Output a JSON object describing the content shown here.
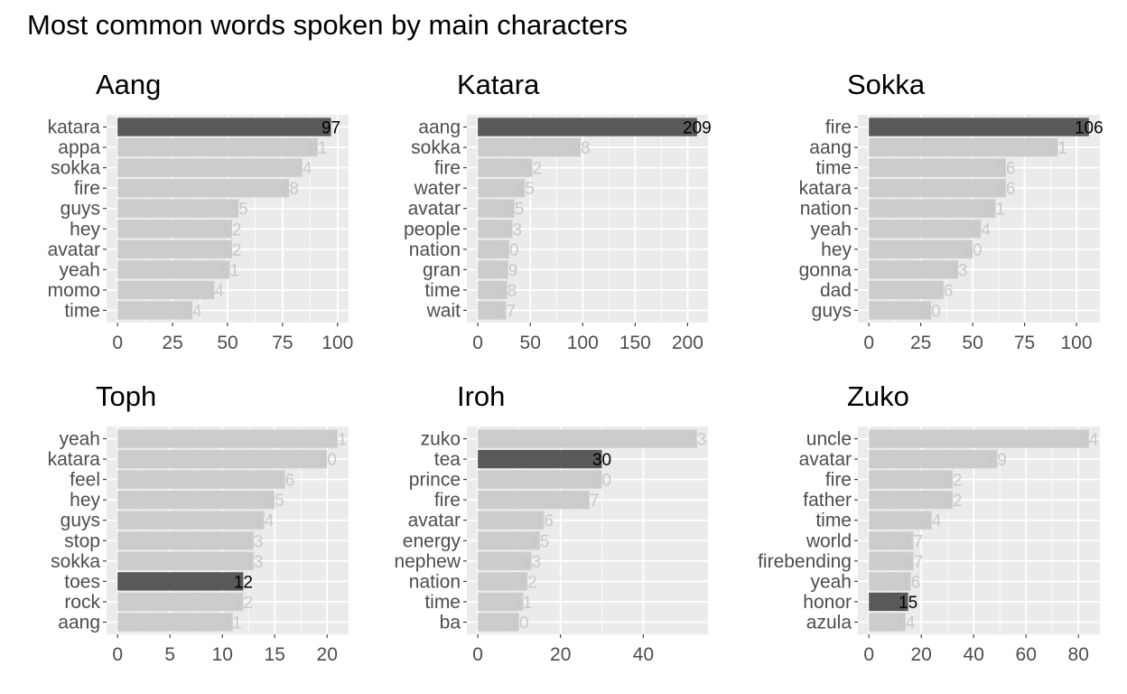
{
  "title": "Most common words spoken by main characters",
  "colors": {
    "panel_bg": "#ebebeb",
    "grid": "#ffffff",
    "bar": "#cccccc",
    "bar_highlight": "#595959",
    "text_on_light": "#c8c8c8",
    "text_on_dark": "#000000"
  },
  "chart_data": [
    {
      "type": "bar",
      "orientation": "horizontal",
      "title": "Aang",
      "categories": [
        "katara",
        "appa",
        "sokka",
        "fire",
        "guys",
        "hey",
        "avatar",
        "yeah",
        "momo",
        "time"
      ],
      "values": [
        97,
        91,
        84,
        78,
        55,
        52,
        52,
        51,
        44,
        34
      ],
      "highlight": "katara",
      "xlim": [
        0,
        100
      ],
      "xticks": [
        0,
        25,
        50,
        75,
        100
      ],
      "grid": true
    },
    {
      "type": "bar",
      "orientation": "horizontal",
      "title": "Katara",
      "categories": [
        "aang",
        "sokka",
        "fire",
        "water",
        "avatar",
        "people",
        "nation",
        "gran",
        "time",
        "wait"
      ],
      "values": [
        209,
        98,
        52,
        45,
        35,
        33,
        30,
        29,
        28,
        27
      ],
      "highlight": "aang",
      "xlim": [
        0,
        209
      ],
      "xticks": [
        0,
        50,
        100,
        150,
        200
      ],
      "grid": true
    },
    {
      "type": "bar",
      "orientation": "horizontal",
      "title": "Sokka",
      "categories": [
        "fire",
        "aang",
        "time",
        "katara",
        "nation",
        "yeah",
        "hey",
        "gonna",
        "dad",
        "guys"
      ],
      "values": [
        106,
        91,
        66,
        66,
        61,
        54,
        50,
        43,
        36,
        30
      ],
      "highlight": "fire",
      "xlim": [
        0,
        106
      ],
      "xticks": [
        0,
        25,
        50,
        75,
        100
      ],
      "grid": true
    },
    {
      "type": "bar",
      "orientation": "horizontal",
      "title": "Toph",
      "categories": [
        "yeah",
        "katara",
        "feel",
        "hey",
        "guys",
        "stop",
        "sokka",
        "toes",
        "rock",
        "aang"
      ],
      "values": [
        21,
        20,
        16,
        15,
        14,
        13,
        13,
        12,
        12,
        11
      ],
      "highlight": "toes",
      "xlim": [
        0,
        21
      ],
      "xticks": [
        0,
        5,
        10,
        15,
        20
      ],
      "grid": true
    },
    {
      "type": "bar",
      "orientation": "horizontal",
      "title": "Iroh",
      "categories": [
        "zuko",
        "tea",
        "prince",
        "fire",
        "avatar",
        "energy",
        "nephew",
        "nation",
        "time",
        "ba"
      ],
      "values": [
        53,
        30,
        30,
        27,
        16,
        15,
        13,
        12,
        11,
        10
      ],
      "highlight": "tea",
      "xlim": [
        0,
        53
      ],
      "xticks": [
        0,
        20,
        40
      ],
      "grid": true
    },
    {
      "type": "bar",
      "orientation": "horizontal",
      "title": "Zuko",
      "categories": [
        "uncle",
        "avatar",
        "fire",
        "father",
        "time",
        "world",
        "firebending",
        "yeah",
        "honor",
        "azula"
      ],
      "values": [
        84,
        49,
        32,
        32,
        24,
        17,
        17,
        16,
        15,
        14
      ],
      "highlight": "honor",
      "xlim": [
        0,
        84
      ],
      "xticks": [
        0,
        20,
        40,
        60,
        80
      ],
      "grid": true
    }
  ]
}
